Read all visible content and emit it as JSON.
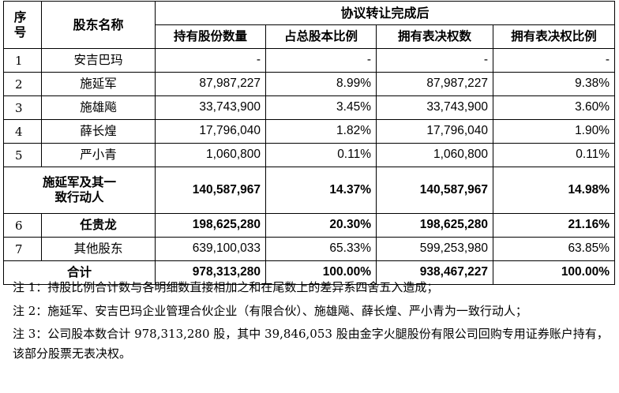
{
  "header": {
    "seq_label": "序号",
    "name_label": "股东名称",
    "group_label": "协议转让完成后",
    "col_shares": "持有股份数量",
    "col_ratio": "占总股本比例",
    "col_votes": "拥有表决权数",
    "col_vote_ratio": "拥有表决权比例"
  },
  "rows": [
    {
      "seq": "1",
      "name": "安吉巴玛",
      "shares": "-",
      "ratio": "-",
      "votes": "-",
      "vote_ratio": "-"
    },
    {
      "seq": "2",
      "name": "施延军",
      "shares": "87,987,227",
      "ratio": "8.99%",
      "votes": "87,987,227",
      "vote_ratio": "9.38%"
    },
    {
      "seq": "3",
      "name": "施雄飚",
      "shares": "33,743,900",
      "ratio": "3.45%",
      "votes": "33,743,900",
      "vote_ratio": "3.60%"
    },
    {
      "seq": "4",
      "name": "薛长煌",
      "shares": "17,796,040",
      "ratio": "1.82%",
      "votes": "17,796,040",
      "vote_ratio": "1.90%"
    },
    {
      "seq": "5",
      "name": "严小青",
      "shares": "1,060,800",
      "ratio": "0.11%",
      "votes": "1,060,800",
      "vote_ratio": "0.11%"
    }
  ],
  "subtotal": {
    "name": "施延军及其一致行动人",
    "shares": "140,587,967",
    "ratio": "14.37%",
    "votes": "140,587,967",
    "vote_ratio": "14.98%"
  },
  "rows2": [
    {
      "seq": "6",
      "name": "任贵龙",
      "shares": "198,625,280",
      "ratio": "20.30%",
      "votes": "198,625,280",
      "vote_ratio": "21.16%"
    },
    {
      "seq": "7",
      "name": "其他股东",
      "shares": "639,100,033",
      "ratio": "65.33%",
      "votes": "599,253,980",
      "vote_ratio": "63.85%"
    }
  ],
  "total": {
    "label": "合计",
    "shares": "978,313,280",
    "ratio": "100.00%",
    "votes": "938,467,227",
    "vote_ratio": "100.00%"
  },
  "notes": [
    "注 1：持股比例合计数与各明细数直接相加之和在尾数上的差异系四舍五入造成；",
    "注 2：施延军、安吉巴玛企业管理合伙企业（有限合伙）、施雄飚、薛长煌、严小青为一致行动人；",
    "注 3：公司股本数合计 978,313,280 股，其中 39,846,053 股由金字火腿股份有限公司回购专用证券账户持有，该部分股票无表决权。"
  ]
}
